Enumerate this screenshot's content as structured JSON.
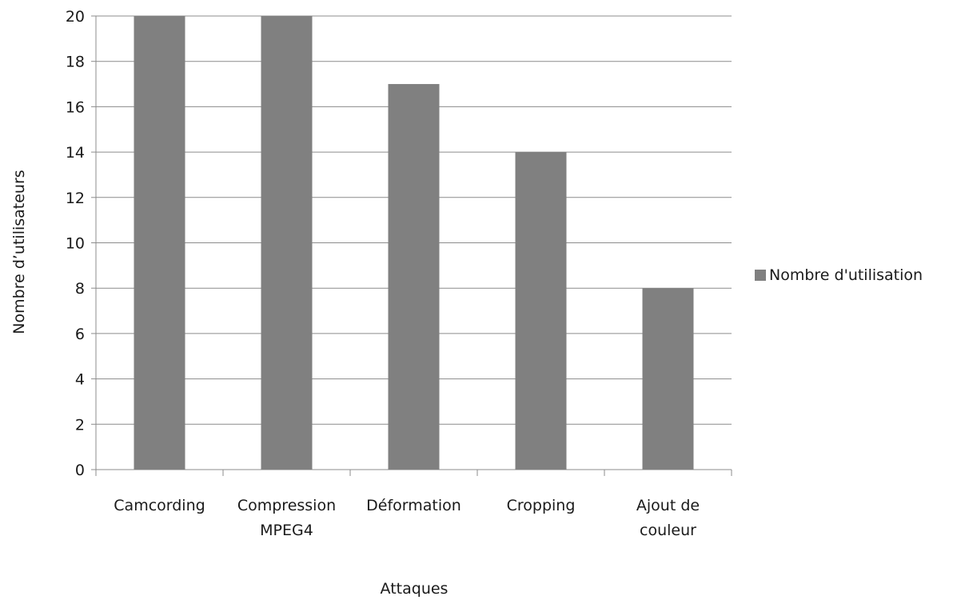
{
  "chart_data": {
    "type": "bar",
    "title": "",
    "xlabel": "Attaques",
    "ylabel": "Nombre d’utilisateurs",
    "categories": [
      [
        "Camcording"
      ],
      [
        "Compression",
        "MPEG4"
      ],
      [
        "Déformation"
      ],
      [
        "Cropping"
      ],
      [
        "Ajout de",
        "couleur"
      ]
    ],
    "series": [
      {
        "name": "Nombre d'utilisation",
        "values": [
          20,
          20,
          17,
          14,
          8
        ],
        "color": "#808080"
      }
    ],
    "ylim": [
      0,
      20
    ],
    "yticks": [
      0,
      2,
      4,
      6,
      8,
      10,
      12,
      14,
      16,
      18,
      20
    ],
    "grid": true,
    "legend_position": "right"
  }
}
